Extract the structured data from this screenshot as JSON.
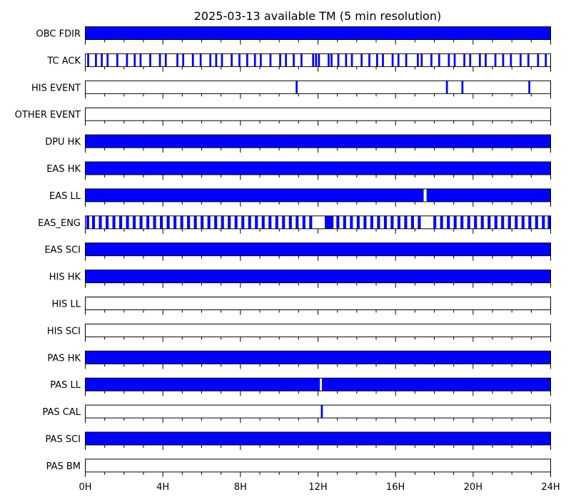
{
  "chart_data": {
    "type": "timeline",
    "title": "2025-03-13 available TM (5 min resolution)",
    "xlabel": "",
    "ylabel": "",
    "x_unit": "hours",
    "xlim": [
      0,
      24
    ],
    "x_ticks": [
      {
        "value": 0,
        "label": "0H"
      },
      {
        "value": 4,
        "label": "4H"
      },
      {
        "value": 8,
        "label": "8H"
      },
      {
        "value": 12,
        "label": "12H"
      },
      {
        "value": 16,
        "label": "16H"
      },
      {
        "value": 20,
        "label": "20H"
      },
      {
        "value": 24,
        "label": "24H"
      }
    ],
    "minor_tick_step_hours": 1,
    "colors": {
      "available": "#0000ff",
      "frame": "#000000",
      "background": "#ffffff"
    },
    "series": [
      {
        "name": "OBC FDIR",
        "intervals": [
          [
            0,
            24
          ]
        ]
      },
      {
        "name": "TC ACK",
        "intervals": [
          [
            0.1,
            0.2
          ],
          [
            0.5,
            0.6
          ],
          [
            0.8,
            0.9
          ],
          [
            1.1,
            1.2
          ],
          [
            1.6,
            1.7
          ],
          [
            2.1,
            2.2
          ],
          [
            2.5,
            2.6
          ],
          [
            2.8,
            2.9
          ],
          [
            3.3,
            3.4
          ],
          [
            3.8,
            3.9
          ],
          [
            4.1,
            4.2
          ],
          [
            4.7,
            4.8
          ],
          [
            5.0,
            5.1
          ],
          [
            5.5,
            5.6
          ],
          [
            5.9,
            6.0
          ],
          [
            6.4,
            6.5
          ],
          [
            6.7,
            6.8
          ],
          [
            7.0,
            7.1
          ],
          [
            7.5,
            7.6
          ],
          [
            7.9,
            8.0
          ],
          [
            8.3,
            8.4
          ],
          [
            8.7,
            8.8
          ],
          [
            9.0,
            9.1
          ],
          [
            9.5,
            9.6
          ],
          [
            10.0,
            10.1
          ],
          [
            10.3,
            10.4
          ],
          [
            10.7,
            10.8
          ],
          [
            11.1,
            11.2
          ],
          [
            11.7,
            11.8
          ],
          [
            11.85,
            11.95
          ],
          [
            12.0,
            12.1
          ],
          [
            12.5,
            12.6
          ],
          [
            12.65,
            12.75
          ],
          [
            13.0,
            13.1
          ],
          [
            13.4,
            13.5
          ],
          [
            13.7,
            13.8
          ],
          [
            14.2,
            14.3
          ],
          [
            14.6,
            14.7
          ],
          [
            15.0,
            15.1
          ],
          [
            15.3,
            15.4
          ],
          [
            15.8,
            15.9
          ],
          [
            16.1,
            16.2
          ],
          [
            16.5,
            16.6
          ],
          [
            17.1,
            17.2
          ],
          [
            17.3,
            17.4
          ],
          [
            17.8,
            17.9
          ],
          [
            18.2,
            18.3
          ],
          [
            18.7,
            18.8
          ],
          [
            19.0,
            19.1
          ],
          [
            19.5,
            19.6
          ],
          [
            19.8,
            19.9
          ],
          [
            20.3,
            20.4
          ],
          [
            20.6,
            20.7
          ],
          [
            21.1,
            21.2
          ],
          [
            21.5,
            21.6
          ],
          [
            21.9,
            22.0
          ],
          [
            22.4,
            22.5
          ],
          [
            22.8,
            22.9
          ],
          [
            23.3,
            23.4
          ],
          [
            23.7,
            23.8
          ]
        ]
      },
      {
        "name": "HIS EVENT",
        "intervals": [
          [
            10.85,
            10.95
          ],
          [
            18.6,
            18.7
          ],
          [
            19.4,
            19.5
          ],
          [
            22.85,
            22.95
          ]
        ]
      },
      {
        "name": "OTHER EVENT",
        "intervals": []
      },
      {
        "name": "DPU HK",
        "intervals": [
          [
            0,
            24
          ]
        ]
      },
      {
        "name": "EAS HK",
        "intervals": [
          [
            0,
            24
          ]
        ]
      },
      {
        "name": "EAS LL",
        "intervals": [
          [
            0,
            17.45
          ],
          [
            17.6,
            24
          ]
        ]
      },
      {
        "name": "EAS_ENG",
        "intervals": [
          [
            0.05,
            0.2
          ],
          [
            0.35,
            0.5
          ],
          [
            0.7,
            0.85
          ],
          [
            1.05,
            1.2
          ],
          [
            1.4,
            1.55
          ],
          [
            1.75,
            1.9
          ],
          [
            2.1,
            2.25
          ],
          [
            2.45,
            2.6
          ],
          [
            2.8,
            2.95
          ],
          [
            3.15,
            3.3
          ],
          [
            3.5,
            3.65
          ],
          [
            3.85,
            4.0
          ],
          [
            4.2,
            4.35
          ],
          [
            4.55,
            4.7
          ],
          [
            4.9,
            5.05
          ],
          [
            5.25,
            5.4
          ],
          [
            5.6,
            5.75
          ],
          [
            5.95,
            6.1
          ],
          [
            6.3,
            6.45
          ],
          [
            6.65,
            6.8
          ],
          [
            7.0,
            7.15
          ],
          [
            7.35,
            7.5
          ],
          [
            7.7,
            7.85
          ],
          [
            8.05,
            8.2
          ],
          [
            8.4,
            8.55
          ],
          [
            8.75,
            8.9
          ],
          [
            9.1,
            9.25
          ],
          [
            9.45,
            9.6
          ],
          [
            9.8,
            9.95
          ],
          [
            10.15,
            10.3
          ],
          [
            10.5,
            10.65
          ],
          [
            10.85,
            11.0
          ],
          [
            11.2,
            11.35
          ],
          [
            11.55,
            11.7
          ],
          [
            12.35,
            12.8
          ],
          [
            12.95,
            13.1
          ],
          [
            13.3,
            13.45
          ],
          [
            13.65,
            13.8
          ],
          [
            14.0,
            14.15
          ],
          [
            14.35,
            14.5
          ],
          [
            14.7,
            14.85
          ],
          [
            15.05,
            15.2
          ],
          [
            15.4,
            15.55
          ],
          [
            15.75,
            15.9
          ],
          [
            16.1,
            16.25
          ],
          [
            16.45,
            16.6
          ],
          [
            16.8,
            16.95
          ],
          [
            17.15,
            17.3
          ],
          [
            17.95,
            18.1
          ],
          [
            18.3,
            18.45
          ],
          [
            18.65,
            18.8
          ],
          [
            19.0,
            19.15
          ],
          [
            19.35,
            19.5
          ],
          [
            19.7,
            19.85
          ],
          [
            20.05,
            20.2
          ],
          [
            20.4,
            20.55
          ],
          [
            20.75,
            20.9
          ],
          [
            21.1,
            21.25
          ],
          [
            21.45,
            21.6
          ],
          [
            21.8,
            21.95
          ],
          [
            22.15,
            22.3
          ],
          [
            22.5,
            22.65
          ],
          [
            22.85,
            23.0
          ],
          [
            23.2,
            23.35
          ],
          [
            23.55,
            23.7
          ],
          [
            23.85,
            24.0
          ]
        ]
      },
      {
        "name": "EAS SCI",
        "intervals": [
          [
            0,
            24
          ]
        ]
      },
      {
        "name": "HIS HK",
        "intervals": [
          [
            0,
            24
          ]
        ]
      },
      {
        "name": "HIS LL",
        "intervals": []
      },
      {
        "name": "HIS SCI",
        "intervals": []
      },
      {
        "name": "PAS HK",
        "intervals": [
          [
            0,
            24
          ]
        ]
      },
      {
        "name": "PAS LL",
        "intervals": [
          [
            0,
            12.1
          ],
          [
            12.2,
            24
          ]
        ]
      },
      {
        "name": "PAS CAL",
        "intervals": [
          [
            12.15,
            12.25
          ]
        ]
      },
      {
        "name": "PAS SCI",
        "intervals": [
          [
            0,
            24
          ]
        ]
      },
      {
        "name": "PAS BM",
        "intervals": []
      }
    ]
  }
}
